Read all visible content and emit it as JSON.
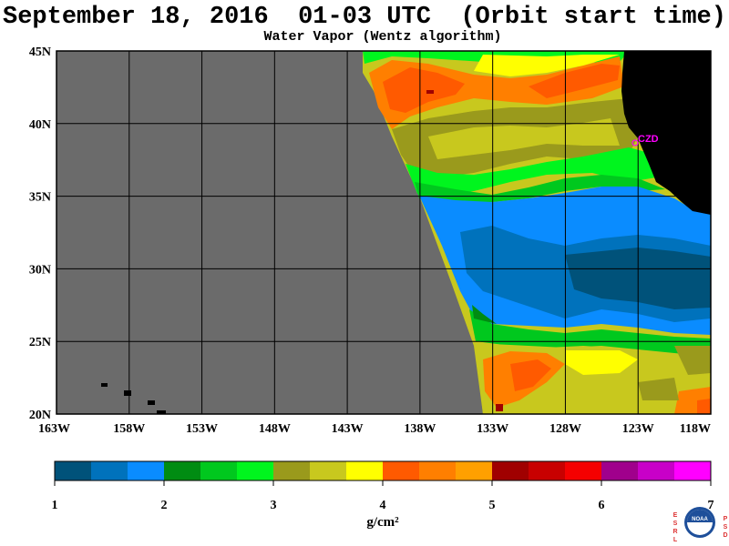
{
  "header": {
    "title": "September 18, 2016  01-03 UTC  (Orbit start time)",
    "subtitle": "Water Vapor (Wentz algorithm)"
  },
  "map": {
    "lat_labels": [
      "45N",
      "40N",
      "35N",
      "30N",
      "25N",
      "20N"
    ],
    "lon_labels": [
      "163W",
      "158W",
      "153W",
      "148W",
      "143W",
      "138W",
      "133W",
      "128W",
      "123W",
      "118W"
    ],
    "lat_range": [
      20,
      45
    ],
    "lon_range": [
      -163,
      -118
    ],
    "station_label": "CZD",
    "colors": {
      "no_data": "#6b6b6b",
      "land": "#000000",
      "grid": "#000000",
      "station": "#ff00ff"
    }
  },
  "colorbar": {
    "ticks": [
      "1",
      "2",
      "3",
      "4",
      "5",
      "6",
      "7"
    ],
    "units_label": "g/cm²",
    "colors": [
      "#00527a",
      "#0072bc",
      "#0a8cff",
      "#008c12",
      "#00c81e",
      "#00f51e",
      "#9a9a1c",
      "#c8c81e",
      "#ffff00",
      "#ff5a00",
      "#ff7f00",
      "#ffa000",
      "#a00000",
      "#c80000",
      "#f50000",
      "#a0008c",
      "#c800c8",
      "#ff00ff"
    ]
  },
  "logo": {
    "left_letters": [
      "E",
      "S",
      "R",
      "L"
    ],
    "right_letters": [
      "P",
      "S",
      "D"
    ],
    "name": "NOAA"
  }
}
